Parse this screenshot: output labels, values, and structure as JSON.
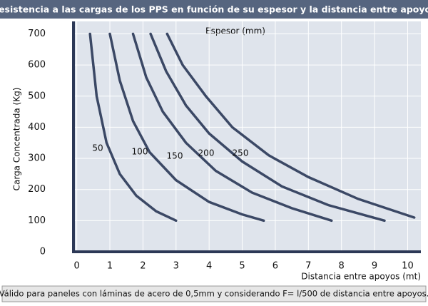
{
  "chart_data": {
    "type": "line",
    "title": "Resistencia a las cargas de los PPS en función de su espesor y la distancia entre apoyos",
    "legend_title": "Espesor (mm)",
    "x_label": "Distancia entre apoyos (mt)",
    "y_label": "Carga Concentrada (Kg)",
    "footnote": "Válido para paneles con láminas de acero de 0,5mm y considerando F= l/500 de distancia entre apoyos.",
    "color": "#3b4865",
    "grid": true,
    "xlim": [
      -0.1,
      10.4
    ],
    "ylim": [
      0,
      740
    ],
    "xticks": [
      0,
      1,
      2,
      3,
      4,
      5,
      6,
      7,
      8,
      9,
      10
    ],
    "yticks": [
      0,
      100,
      200,
      300,
      400,
      500,
      600,
      700
    ],
    "series": [
      {
        "name": "50",
        "x": [
          0.4,
          0.6,
          0.9,
          1.3,
          1.8,
          2.4,
          3
        ],
        "values": [
          700,
          500,
          350,
          250,
          180,
          130,
          100
        ]
      },
      {
        "name": "100",
        "x": [
          1,
          1.3,
          1.7,
          2.2,
          3,
          4,
          5,
          5.65
        ],
        "values": [
          700,
          550,
          420,
          320,
          230,
          160,
          120,
          100
        ]
      },
      {
        "name": "150",
        "x": [
          1.7,
          2.1,
          2.6,
          3.3,
          4.2,
          5.3,
          6.5,
          7.7
        ],
        "values": [
          700,
          560,
          450,
          350,
          260,
          190,
          140,
          100
        ]
      },
      {
        "name": "200",
        "x": [
          2.23,
          2.7,
          3.3,
          4,
          5,
          6.2,
          7.6,
          9.3
        ],
        "values": [
          700,
          580,
          470,
          380,
          290,
          210,
          150,
          100
        ]
      },
      {
        "name": "250",
        "x": [
          2.73,
          3.2,
          3.9,
          4.7,
          5.8,
          7,
          8.5,
          10.2
        ],
        "values": [
          700,
          600,
          500,
          400,
          310,
          240,
          170,
          110
        ]
      }
    ]
  }
}
